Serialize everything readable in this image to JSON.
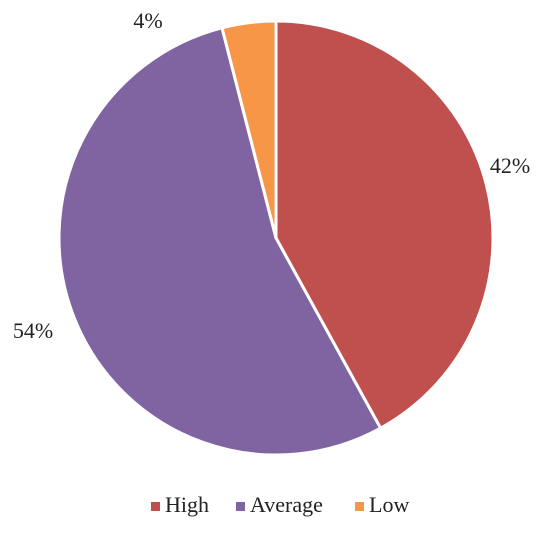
{
  "chart_data": {
    "type": "pie",
    "categories": [
      "High",
      "Average",
      "Low"
    ],
    "values": [
      42,
      54,
      4
    ],
    "labels": [
      "42%",
      "54%",
      "4%"
    ],
    "colors": [
      "#C0504D",
      "#8064A2",
      "#F79646"
    ],
    "start_angle_deg": 0,
    "direction": "clockwise",
    "legend": {
      "position": "bottom",
      "items": [
        "High",
        "Average",
        "Low"
      ]
    }
  }
}
